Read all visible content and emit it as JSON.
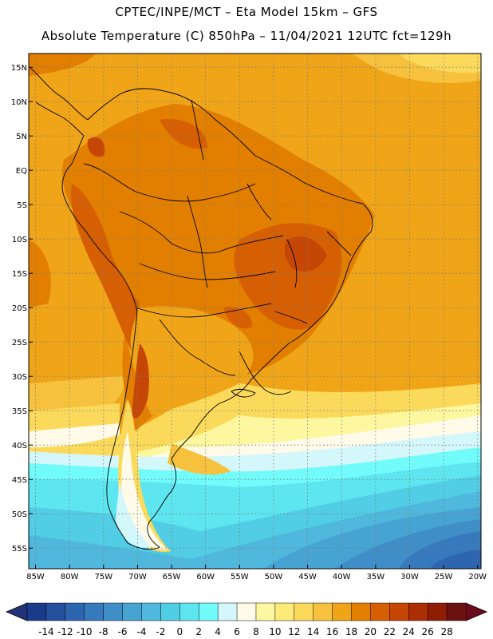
{
  "header": {
    "line1": "CPTEC/INPE/MCT –  Eta Model 15km – GFS",
    "line2": "Absolute Temperature (C) 850hPa – 11/04/2021 12UTC fct=129h"
  },
  "map": {
    "lon_labels": [
      "85W",
      "80W",
      "75W",
      "70W",
      "65W",
      "60W",
      "55W",
      "50W",
      "45W",
      "40W",
      "35W",
      "30W",
      "25W",
      "20W"
    ],
    "lat_labels": [
      "15N",
      "10N",
      "5N",
      "EQ",
      "5S",
      "10S",
      "15S",
      "20S",
      "25S",
      "30S",
      "35S",
      "40S",
      "45S",
      "50S",
      "55S"
    ],
    "lon_range": [
      -86,
      -19.5
    ],
    "lat_range": [
      17,
      -58
    ]
  },
  "colorbar": {
    "labels": [
      "-14",
      "-12",
      "-10",
      "-8",
      "-6",
      "-4",
      "-2",
      "0",
      "2",
      "4",
      "6",
      "8",
      "10",
      "12",
      "14",
      "16",
      "18",
      "20",
      "22",
      "24",
      "26",
      "28"
    ],
    "colors": [
      "#1b3a8a",
      "#24509e",
      "#2d65b0",
      "#3679bd",
      "#3f8ec8",
      "#47a3d2",
      "#4fb8dc",
      "#52cde6",
      "#5ee6f0",
      "#72fbfb",
      "#d4f7fb",
      "#fffbe8",
      "#fdf7a0",
      "#fdea78",
      "#fbda5b",
      "#f6c23d",
      "#f0a418",
      "#e27f00",
      "#d65f03",
      "#c64605",
      "#ac2e04",
      "#8e1d04",
      "#6b1111"
    ],
    "under_color": "#24327a",
    "over_color": "#6b0a1d"
  }
}
